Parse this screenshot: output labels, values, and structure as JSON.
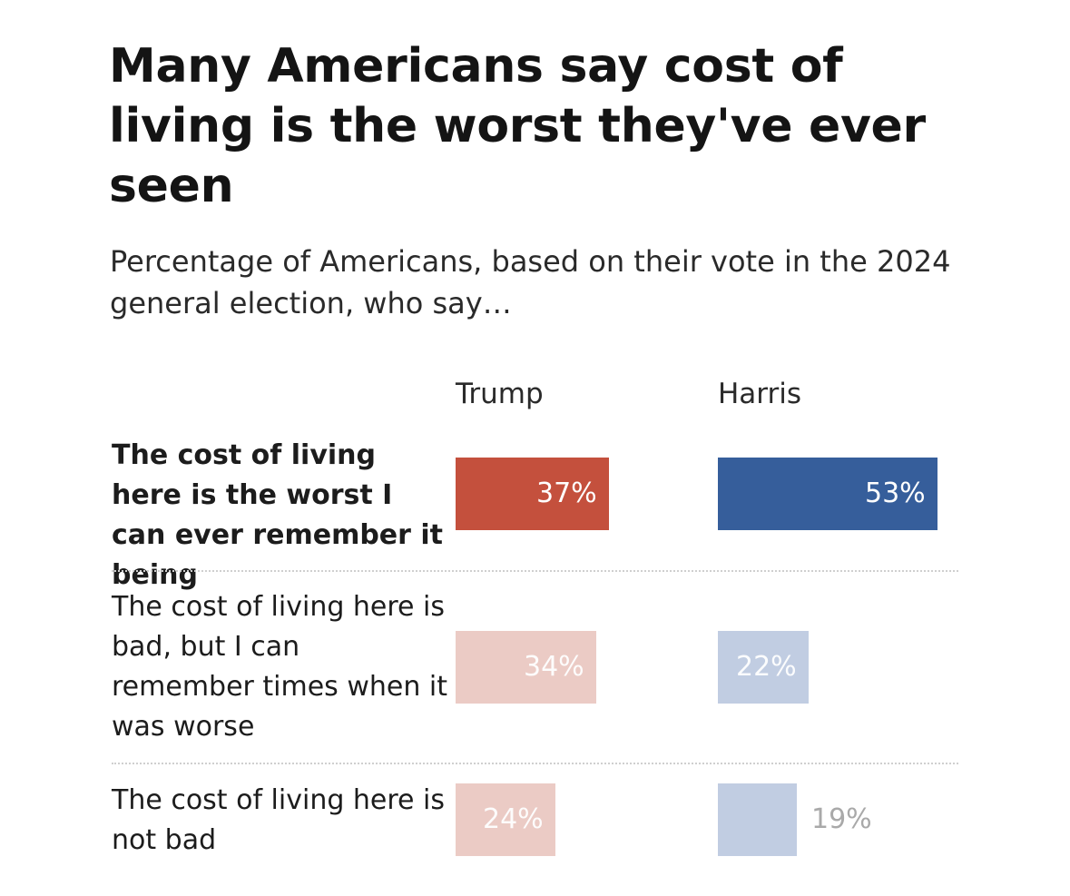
{
  "chart_data": {
    "type": "bar",
    "title": "Many Americans say cost of living is the worst they've ever seen",
    "subtitle": "Percentage of Americans, based on their vote in the 2024 general election, who say…",
    "categories": [
      "The cost of living here is the worst I can ever remember it being",
      "The cost of living here is bad, but I can remember times when it was worse",
      "The cost of living here is not bad"
    ],
    "series": [
      {
        "name": "Trump",
        "values": [
          37,
          34,
          24
        ],
        "labels": [
          "37%",
          "34%",
          "24%"
        ],
        "colors": [
          "#c4503d",
          "#ebcbc5",
          "#ebcbc5"
        ]
      },
      {
        "name": "Harris",
        "values": [
          53,
          22,
          19
        ],
        "labels": [
          "53%",
          "22%",
          "19%"
        ],
        "colors": [
          "#365e9b",
          "#c1cde2",
          "#c1cde2"
        ]
      }
    ],
    "unit": "%",
    "xlim": [
      0,
      53
    ]
  }
}
